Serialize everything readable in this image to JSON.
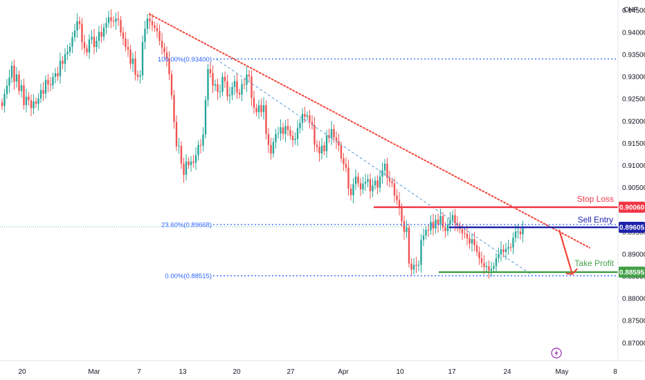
{
  "chart_data": {
    "type": "candlestick",
    "currency": "CHF",
    "x_ticks": [
      "20",
      "Mar",
      "7",
      "13",
      "20",
      "27",
      "Apr",
      "10",
      "17",
      "24",
      "May",
      "8"
    ],
    "y_ticks": [
      "0.94500",
      "0.94000",
      "0.93500",
      "0.93000",
      "0.92500",
      "0.92000",
      "0.91500",
      "0.91000",
      "0.90500",
      "0.90000",
      "0.89500",
      "0.89000",
      "0.88500",
      "0.88000",
      "0.87500",
      "0.87000"
    ],
    "ylim": [
      0.866,
      0.9473
    ],
    "fib_levels": [
      {
        "label": "100.00%(0.93400)",
        "value": 0.934
      },
      {
        "label": "23.60%(0.89668)",
        "value": 0.89668
      },
      {
        "label": "0.00%(0.88515)",
        "value": 0.88515
      }
    ],
    "levels": [
      {
        "name": "Stop Loss",
        "value": 0.9006,
        "tag": "0.90060",
        "color": "#f23645"
      },
      {
        "name": "Sell Entry",
        "value": 0.89605,
        "tag": "0.89605",
        "color": "#1e22aa"
      },
      {
        "name": "Take Profit",
        "value": 0.88595,
        "tag": "0.88595",
        "color": "#43a047"
      }
    ],
    "last_price": 0.8962,
    "colors": {
      "up": "#26a69a",
      "down": "#ef5350",
      "trendline": "#f44336",
      "channel": "#5b9bd5",
      "fib": "#2962ff",
      "axis_text": "#131722"
    },
    "close_series": [
      0.9234,
      0.9261,
      0.928,
      0.9298,
      0.9325,
      0.9289,
      0.9305,
      0.9268,
      0.9281,
      0.9236,
      0.9255,
      0.9247,
      0.9229,
      0.9244,
      0.9239,
      0.9251,
      0.927,
      0.9262,
      0.9293,
      0.9283,
      0.9281,
      0.93,
      0.9308,
      0.9301,
      0.9336,
      0.9329,
      0.9351,
      0.9356,
      0.9368,
      0.9389,
      0.9404,
      0.9425,
      0.9419,
      0.9378,
      0.9364,
      0.9355,
      0.9384,
      0.939,
      0.9367,
      0.9381,
      0.9401,
      0.939,
      0.9411,
      0.9421,
      0.9434,
      0.9426,
      0.9424,
      0.9431,
      0.9428,
      0.94,
      0.9386,
      0.9367,
      0.9361,
      0.9329,
      0.9341,
      0.9305,
      0.93,
      0.9303,
      0.9378,
      0.9408,
      0.9431,
      0.9425,
      0.9416,
      0.941,
      0.9403,
      0.9381,
      0.9366,
      0.9355,
      0.9341,
      0.9306,
      0.9258,
      0.9198,
      0.9143,
      0.9144,
      0.9104,
      0.9079,
      0.9109,
      0.9101,
      0.9109,
      0.9106,
      0.9123,
      0.9146,
      0.9145,
      0.917,
      0.9248,
      0.9317,
      0.9308,
      0.928,
      0.9283,
      0.9266,
      0.9266,
      0.93,
      0.929,
      0.9256,
      0.9259,
      0.9277,
      0.929,
      0.9264,
      0.926,
      0.9283,
      0.9282,
      0.9305,
      0.9301,
      0.9252,
      0.923,
      0.922,
      0.9236,
      0.922,
      0.9236,
      0.9171,
      0.9146,
      0.9127,
      0.9153,
      0.9171,
      0.9172,
      0.9186,
      0.9171,
      0.9189,
      0.918,
      0.9167,
      0.9157,
      0.916,
      0.9184,
      0.9196,
      0.9216,
      0.921,
      0.9213,
      0.9198,
      0.9191,
      0.9147,
      0.9142,
      0.9127,
      0.9145,
      0.9132,
      0.9168,
      0.9162,
      0.9182,
      0.9163,
      0.9155,
      0.9145,
      0.9116,
      0.9103,
      0.9095,
      0.9048,
      0.9033,
      0.9058,
      0.9075,
      0.906,
      0.9046,
      0.9059,
      0.9063,
      0.9069,
      0.9042,
      0.9055,
      0.9066,
      0.905,
      0.9075,
      0.9089,
      0.9104,
      0.9072,
      0.9064,
      0.906,
      0.9032,
      0.9022,
      0.9004,
      0.8974,
      0.895,
      0.896,
      0.8879,
      0.8865,
      0.8876,
      0.8874,
      0.8876,
      0.8932,
      0.8942,
      0.8955,
      0.8954,
      0.8973,
      0.8958,
      0.8978,
      0.8967,
      0.8986,
      0.896,
      0.8952,
      0.8967,
      0.8977,
      0.8988,
      0.897,
      0.8964,
      0.8956,
      0.8947,
      0.8946,
      0.8936,
      0.8924,
      0.8934,
      0.892,
      0.8905,
      0.8891,
      0.888,
      0.8871,
      0.8873,
      0.8863,
      0.8867,
      0.8873,
      0.8891,
      0.89,
      0.8911,
      0.8905,
      0.8912,
      0.8916,
      0.8915,
      0.8937,
      0.8951,
      0.8951,
      0.8945,
      0.8962
    ]
  }
}
